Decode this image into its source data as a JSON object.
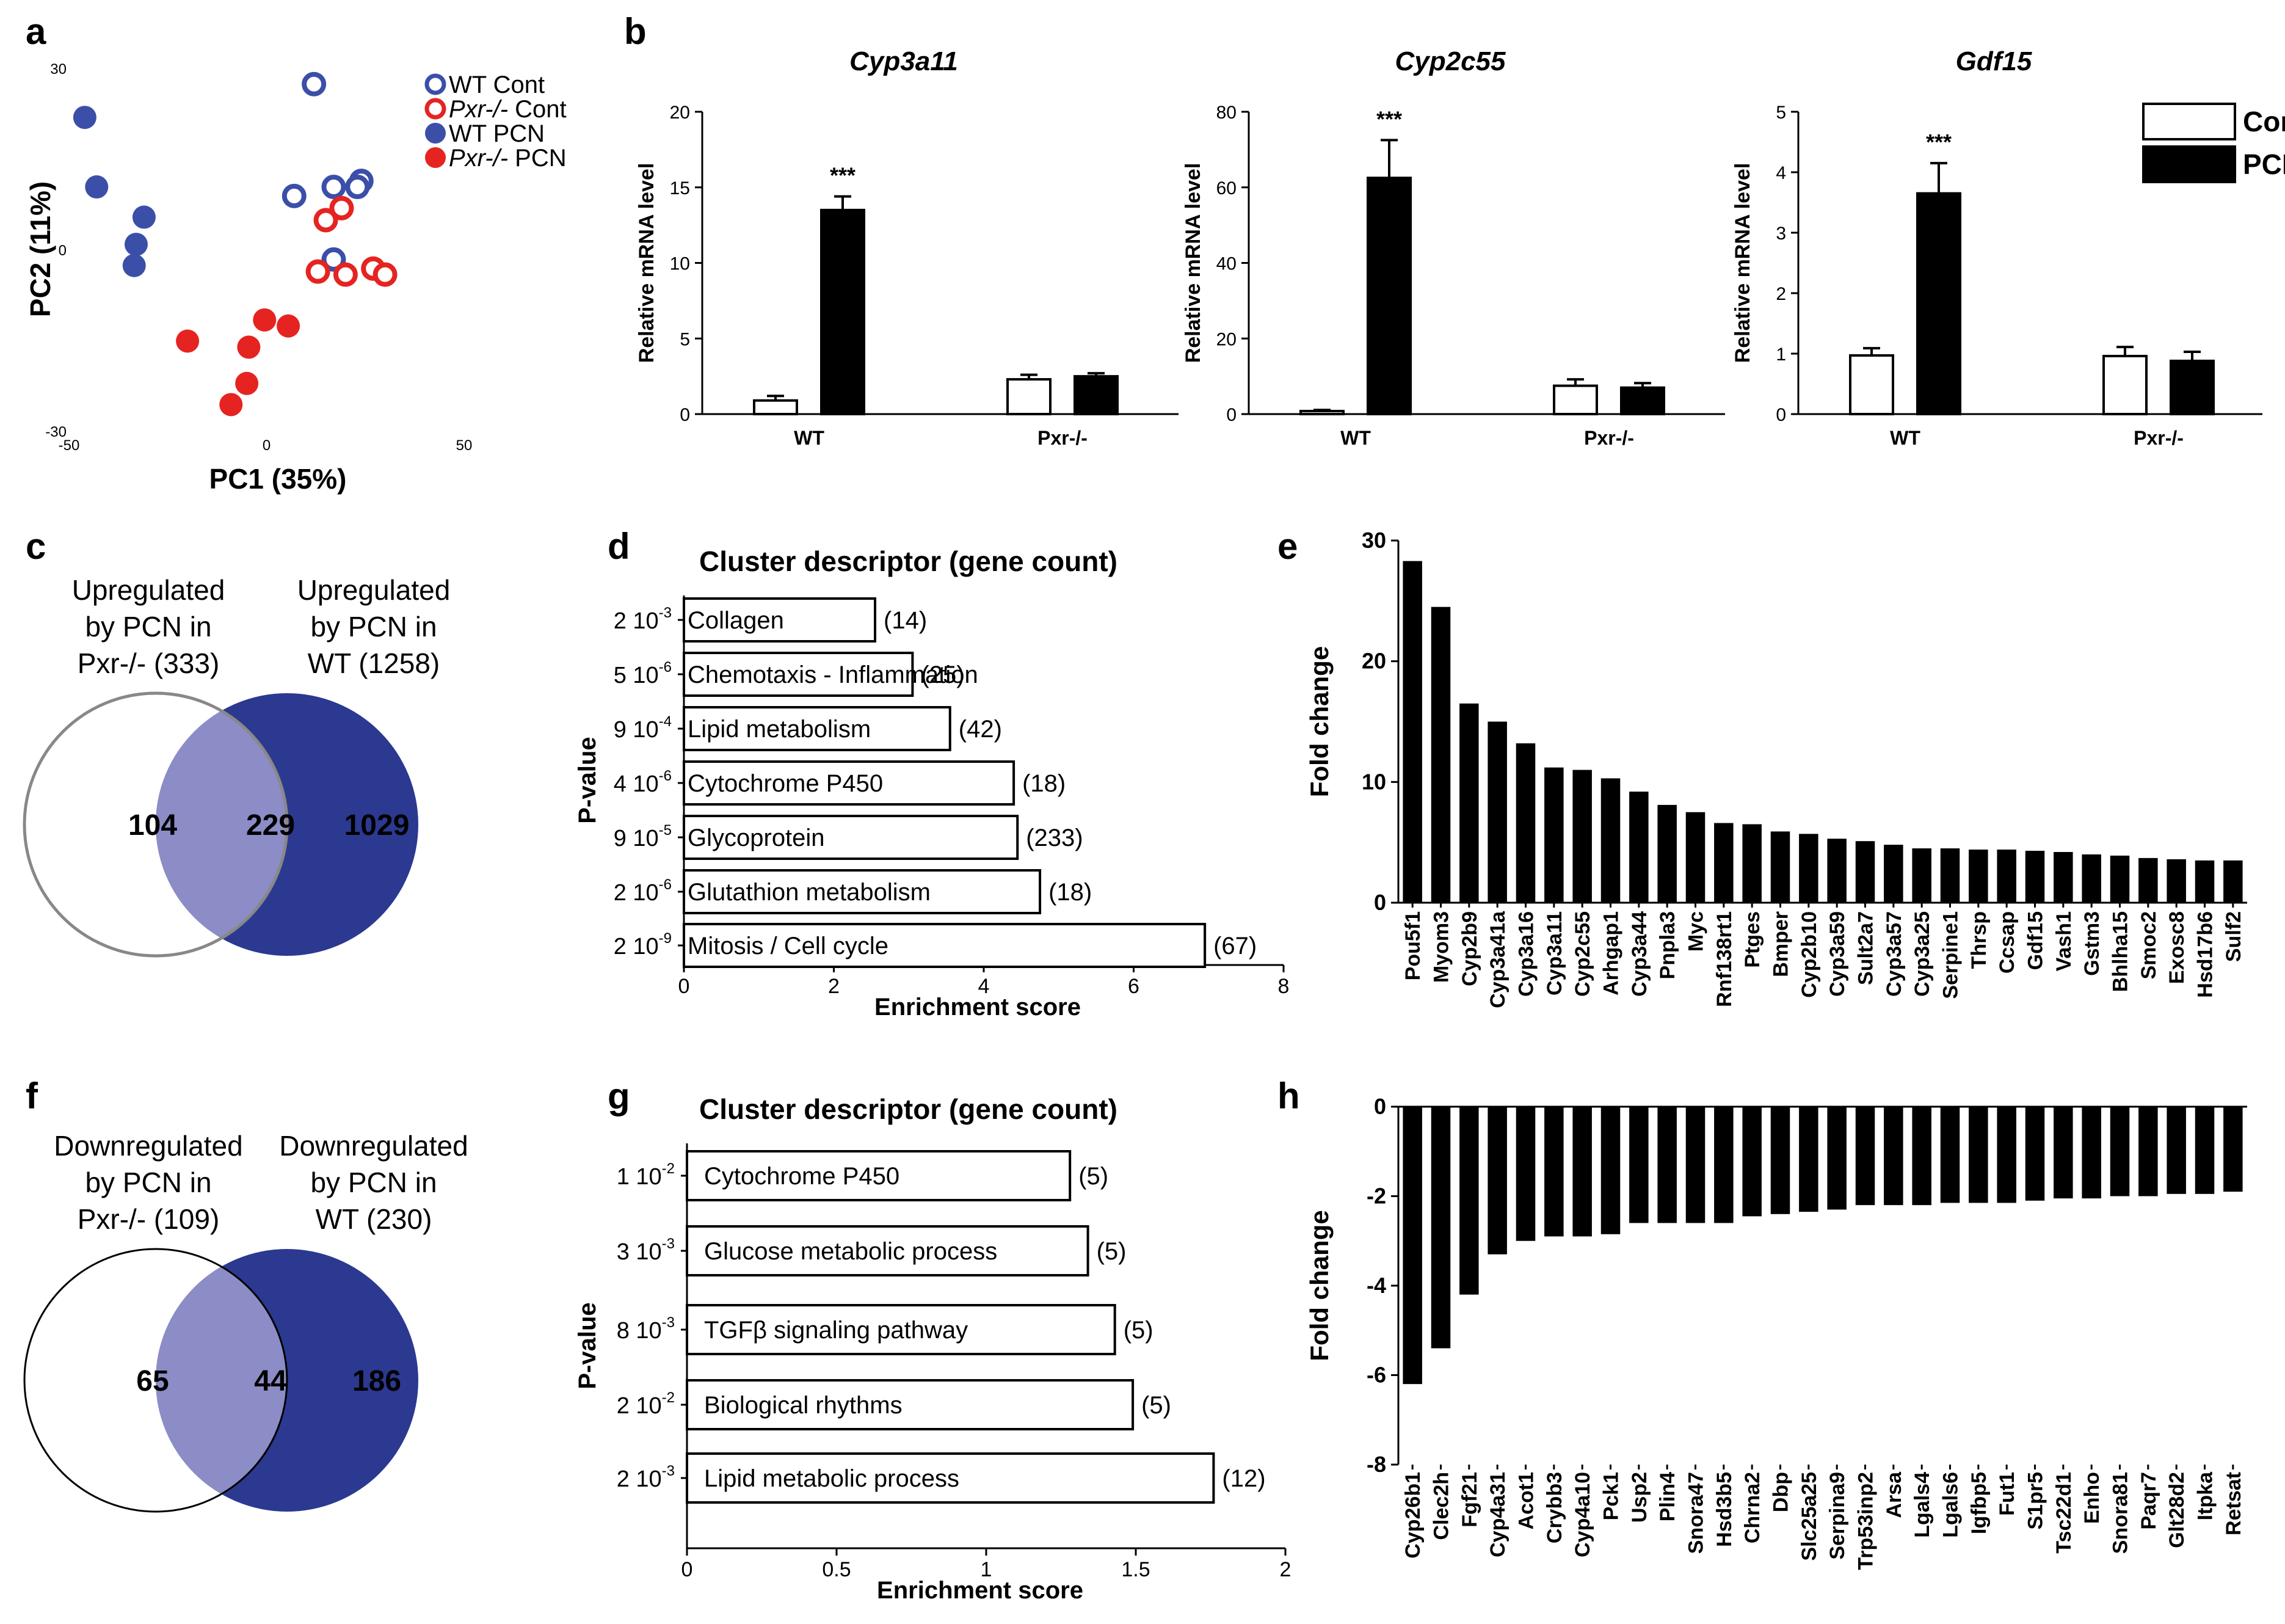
{
  "figure": {
    "panel_letters": [
      "a",
      "b",
      "c",
      "d",
      "e",
      "f",
      "g",
      "h"
    ],
    "colors": {
      "wt": "#3b4fa8",
      "pxr": "#e52421",
      "venn_dark": "#2b3990",
      "venn_overlap": "#8c8cc6",
      "bar": "#000000"
    }
  },
  "chart_data": [
    {
      "panel": "a",
      "type": "scatter",
      "xlabel": "PC1 (35%)",
      "ylabel": "PC2 (11%)",
      "xlim": [
        -50,
        50
      ],
      "ylim": [
        -30,
        30
      ],
      "xticks": [
        "-50",
        "0",
        "50"
      ],
      "yticks": [
        "30",
        "0",
        "-30"
      ],
      "legend": [
        "WT Cont",
        "Pxr-/- Cont",
        "WT PCN",
        "Pxr-/- PCN"
      ],
      "series": [
        {
          "name": "WT Cont",
          "style": "open",
          "color": "#3b4fa8",
          "points": [
            [
              12,
              27.5
            ],
            [
              7,
              9
            ],
            [
              17,
              10.5
            ],
            [
              24,
              11.5
            ],
            [
              23,
              10.5
            ],
            [
              17,
              -1.5
            ]
          ]
        },
        {
          "name": "Pxr-/- Cont",
          "style": "open",
          "color": "#e52421",
          "points": [
            [
              15,
              5
            ],
            [
              19,
              7
            ],
            [
              13,
              -3.5
            ],
            [
              20,
              -4
            ],
            [
              27,
              -3
            ],
            [
              30,
              -4
            ]
          ]
        },
        {
          "name": "WT PCN",
          "style": "filled",
          "color": "#3b4fa8",
          "points": [
            [
              -46,
              22
            ],
            [
              -43,
              10.5
            ],
            [
              -31,
              5.5
            ],
            [
              -33,
              1
            ],
            [
              -33.5,
              -2.5
            ]
          ]
        },
        {
          "name": "Pxr-/- PCN",
          "style": "filled",
          "color": "#e52421",
          "points": [
            [
              -20,
              -15
            ],
            [
              -0.5,
              -11.5
            ],
            [
              5.5,
              -12.5
            ],
            [
              -4.5,
              -16
            ],
            [
              -5,
              -22
            ],
            [
              -9,
              -25.5
            ]
          ]
        }
      ]
    },
    {
      "panel": "b",
      "type": "bar",
      "subplots": [
        {
          "title": "Cyp3a11",
          "ylabel": "Relative mRNA level",
          "ylim": [
            0,
            20
          ],
          "yticks": [
            "0",
            "5",
            "10",
            "15",
            "20"
          ],
          "groups": [
            "WT",
            "Pxr-/-"
          ],
          "cont": [
            0.9,
            2.3
          ],
          "cont_err": [
            0.3,
            0.3
          ],
          "pcn": [
            13.5,
            2.5
          ],
          "pcn_err": [
            0.9,
            0.2
          ],
          "sig": "***"
        },
        {
          "title": "Cyp2c55",
          "ylabel": "Relative mRNA level",
          "ylim": [
            0,
            80
          ],
          "yticks": [
            "0",
            "20",
            "40",
            "60",
            "80"
          ],
          "groups": [
            "WT",
            "Pxr-/-"
          ],
          "cont": [
            0.8,
            7.5
          ],
          "cont_err": [
            0.3,
            1.7
          ],
          "pcn": [
            62.5,
            7
          ],
          "pcn_err": [
            10,
            1.2
          ],
          "sig": "***"
        },
        {
          "title": "Gdf15",
          "ylabel": "Relative mRNA level",
          "ylim": [
            0,
            5
          ],
          "yticks": [
            "0",
            "1",
            "2",
            "3",
            "4",
            "5"
          ],
          "groups": [
            "WT",
            "Pxr-/-"
          ],
          "cont": [
            0.97,
            0.96
          ],
          "cont_err": [
            0.12,
            0.15
          ],
          "pcn": [
            3.65,
            0.88
          ],
          "pcn_err": [
            0.5,
            0.15
          ],
          "sig": "***"
        }
      ],
      "legend": [
        "Cont",
        "PCN"
      ]
    },
    {
      "panel": "c",
      "type": "venn",
      "left_label": [
        "Upregulated",
        "by PCN in",
        "Pxr-/- (333)"
      ],
      "right_label": [
        "Upregulated",
        "by PCN in",
        "WT (1258)"
      ],
      "left_only": "104",
      "overlap": "229",
      "right_only": "1029"
    },
    {
      "panel": "d",
      "type": "bar",
      "orientation": "horizontal",
      "header": "Cluster descriptor (gene count)",
      "xlabel": "Enrichment score",
      "ylabel": "P-value",
      "xlim": [
        0,
        8
      ],
      "xticks": [
        "0",
        "2",
        "4",
        "6",
        "8"
      ],
      "bars": [
        {
          "pval_base": "2 10",
          "pval_exp": "-3",
          "label": "Collagen",
          "count": "(14)",
          "value": 2.55
        },
        {
          "pval_base": "5 10",
          "pval_exp": "-6",
          "label": "Chemotaxis - Inflammation",
          "count": "(25)",
          "value": 3.05
        },
        {
          "pval_base": "9 10",
          "pval_exp": "-4",
          "label": "Lipid metabolism",
          "count": "(42)",
          "value": 3.55
        },
        {
          "pval_base": "4 10",
          "pval_exp": "-6",
          "label": "Cytochrome P450",
          "count": "(18)",
          "value": 4.4
        },
        {
          "pval_base": "9 10",
          "pval_exp": "-5",
          "label": "Glycoprotein",
          "count": "(233)",
          "value": 4.45
        },
        {
          "pval_base": "2 10",
          "pval_exp": "-6",
          "label": "Glutathion metabolism",
          "count": "(18)",
          "value": 4.75
        },
        {
          "pval_base": "2 10",
          "pval_exp": "-9",
          "label": "Mitosis / Cell cycle",
          "count": "(67)",
          "value": 6.95
        }
      ]
    },
    {
      "panel": "e",
      "type": "bar",
      "ylabel": "Fold change",
      "ylim": [
        0,
        30
      ],
      "yticks": [
        "0",
        "10",
        "20",
        "30"
      ],
      "categories": [
        "Pou5f1",
        "Myom3",
        "Cyp2b9",
        "Cyp3a41a",
        "Cyp3a16",
        "Cyp3a11",
        "Cyp2c55",
        "Arhgap1",
        "Cyp3a44",
        "Pnpla3",
        "Myc",
        "Rnf138rt1",
        "Ptges",
        "Bmper",
        "Cyp2b10",
        "Cyp3a59",
        "Sult2a7",
        "Cyp3a57",
        "Cyp3a25",
        "Serpine1",
        "Thrsp",
        "Ccsap",
        "Gdf15",
        "Vash1",
        "Gstm3",
        "Bhlha15",
        "Smoc2",
        "Exosc8",
        "Hsd17b6",
        "Sulf2"
      ],
      "values": [
        28.3,
        24.5,
        16.5,
        15,
        13.2,
        11.2,
        11,
        10.3,
        9.2,
        8.1,
        7.5,
        6.6,
        6.5,
        5.9,
        5.7,
        5.3,
        5.1,
        4.8,
        4.5,
        4.5,
        4.4,
        4.4,
        4.3,
        4.2,
        4,
        3.9,
        3.7,
        3.6,
        3.5,
        3.5
      ]
    },
    {
      "panel": "f",
      "type": "venn",
      "left_label": [
        "Downregulated",
        "by PCN in",
        "Pxr-/- (109)"
      ],
      "right_label": [
        "Downregulated",
        "by PCN in",
        "WT (230)"
      ],
      "left_only": "65",
      "overlap": "44",
      "right_only": "186"
    },
    {
      "panel": "g",
      "type": "bar",
      "orientation": "horizontal",
      "header": "Cluster descriptor (gene count)",
      "xlabel": "Enrichment score",
      "ylabel": "P-value",
      "xlim": [
        0,
        2
      ],
      "xticks": [
        "0",
        "0.5",
        "1",
        "1.5",
        "2"
      ],
      "bars": [
        {
          "pval_base": "1 10",
          "pval_exp": "-2",
          "label": "Cytochrome P450",
          "count": "(5)",
          "value": 1.28
        },
        {
          "pval_base": "3 10",
          "pval_exp": "-3",
          "label": "Glucose metabolic process",
          "count": "(5)",
          "value": 1.34
        },
        {
          "pval_base": "8 10",
          "pval_exp": "-3",
          "label": "TGFβ signaling pathway",
          "count": "(5)",
          "value": 1.43
        },
        {
          "pval_base": "2 10",
          "pval_exp": "-2",
          "label": "Biological rhythms",
          "count": "(5)",
          "value": 1.49
        },
        {
          "pval_base": "2 10",
          "pval_exp": "-3",
          "label": "Lipid metabolic process",
          "count": "(12)",
          "value": 1.76
        }
      ]
    },
    {
      "panel": "h",
      "type": "bar",
      "ylabel": "Fold change",
      "ylim": [
        -8,
        0
      ],
      "yticks": [
        "0",
        "-2",
        "-4",
        "-6",
        "-8"
      ],
      "categories": [
        "Cyp26b1",
        "Clec2h",
        "Fgf21",
        "Cyp4a31",
        "Acot1",
        "Crybb3",
        "Cyp4a10",
        "Pck1",
        "Usp2",
        "Plin4",
        "Snora47",
        "Hsd3b5",
        "Chrna2",
        "Dbp",
        "Slc25a25",
        "Serpina9",
        "Trp53inp2",
        "Arsa",
        "Lgals4",
        "Lgals6",
        "Igfbp5",
        "Fut1",
        "S1pr5",
        "Tsc22d1",
        "Enho",
        "Snora81",
        "Paqr7",
        "Glt28d2",
        "Itpka",
        "Retsat"
      ],
      "values": [
        -6.2,
        -5.4,
        -4.2,
        -3.3,
        -3.0,
        -2.9,
        -2.9,
        -2.85,
        -2.6,
        -2.6,
        -2.6,
        -2.6,
        -2.45,
        -2.4,
        -2.35,
        -2.3,
        -2.2,
        -2.2,
        -2.2,
        -2.15,
        -2.15,
        -2.15,
        -2.1,
        -2.05,
        -2.05,
        -2.0,
        -2.0,
        -1.95,
        -1.95,
        -1.9
      ]
    }
  ]
}
